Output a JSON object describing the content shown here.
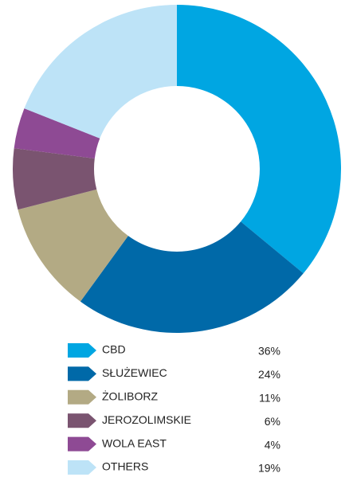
{
  "chart_data": {
    "type": "donut",
    "categories": [
      "CBD",
      "SŁUŻEWIEC",
      "ŻOLIBORZ",
      "JEROZOLIMSKIE",
      "WOLA EAST",
      "OTHERS"
    ],
    "values": [
      36,
      24,
      11,
      6,
      4,
      19
    ],
    "value_labels": [
      "36%",
      "24%",
      "11%",
      "6%",
      "4%",
      "19%"
    ],
    "colors": [
      "#00a6e2",
      "#0069a8",
      "#b3aa84",
      "#7a5470",
      "#8e4a94",
      "#bde3f7"
    ]
  }
}
